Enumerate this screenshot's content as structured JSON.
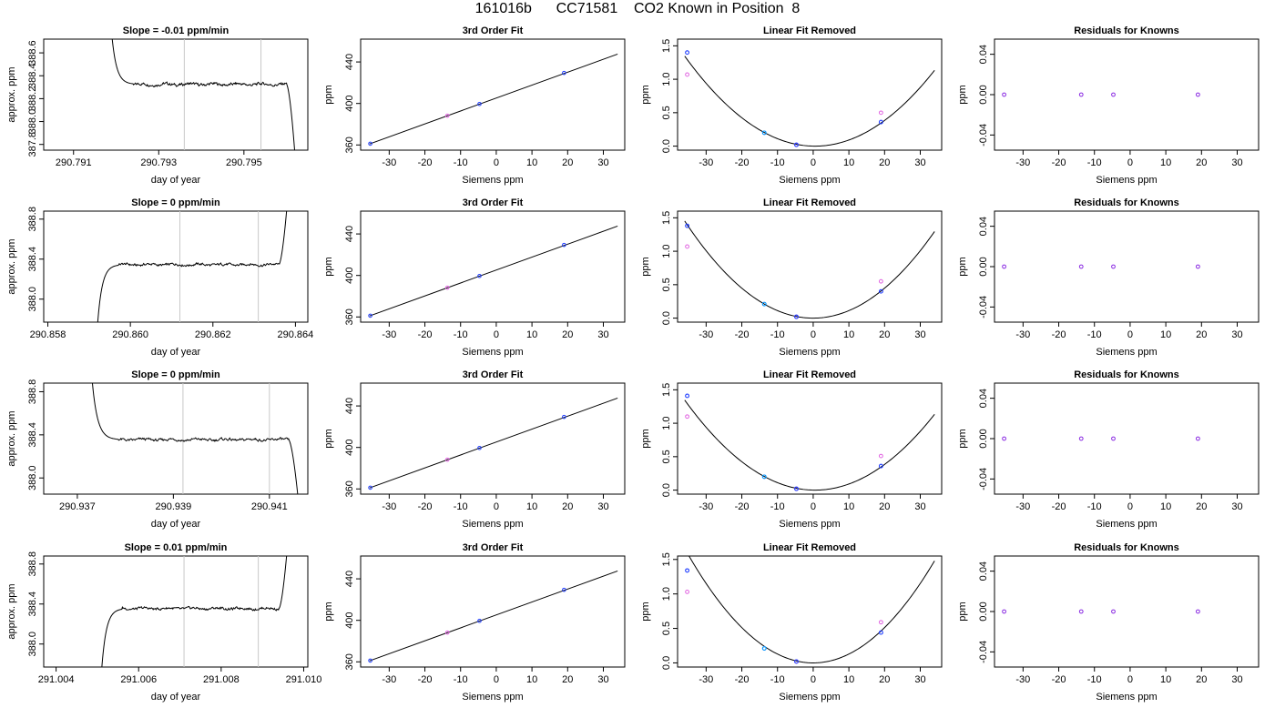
{
  "title": "161016b      CC71581    CO2 Known in Position  8",
  "colors": {
    "trace": "#000000",
    "marker_lines": "#c8c8c8",
    "fit_points": "#1e3cff",
    "known_points": "#e060e0",
    "highlight_point": "#00a0ff",
    "residual_points": "#8a2be2"
  },
  "columns": {
    "timeseries": {
      "ylabel": "approx. ppm",
      "xlabel": "day of year"
    },
    "fit": {
      "title": "3rd Order Fit",
      "ylabel": "ppm",
      "xlabel": "Siemens ppm"
    },
    "linear_removed": {
      "title": "Linear Fit Removed",
      "ylabel": "ppm",
      "xlabel": "Siemens ppm"
    },
    "residuals": {
      "title": "Residuals for Knowns",
      "ylabel": "ppm",
      "xlabel": "Siemens ppm"
    }
  },
  "chart_data": [
    {
      "row": 1,
      "timeseries": {
        "type": "line",
        "title": "Slope =  -0.01  ppm/min",
        "xlabel": "day of year",
        "ylabel": "approx. ppm",
        "xlim": [
          290.7903,
          290.7965
        ],
        "ylim": [
          387.75,
          388.72
        ],
        "xticks": [
          "290.791",
          "290.793",
          "290.795"
        ],
        "xtick_values": [
          290.791,
          290.793,
          290.795
        ],
        "yticks": [
          "387.8",
          "388.0",
          "388.2",
          "388.4",
          "388.6"
        ],
        "ytick_values": [
          387.8,
          388.0,
          388.2,
          388.4,
          388.6
        ],
        "window_lines": [
          290.7936,
          290.7954
        ],
        "trace": {
          "start": 290.7919,
          "end": 290.7962,
          "plateau_start": 290.7924,
          "plateau_end": 290.796,
          "plateau_level": 388.325,
          "before": 388.75,
          "after": 387.7,
          "direction": "down"
        }
      },
      "fit": {
        "type": "scatter",
        "title": "3rd Order Fit",
        "xlabel": "Siemens ppm",
        "ylabel": "ppm",
        "xlim": [
          -38,
          36
        ],
        "ylim": [
          355,
          462
        ],
        "xticks": [
          "-30",
          "-20",
          "-10",
          "0",
          "10",
          "20",
          "30"
        ],
        "xtick_values": [
          -30,
          -20,
          -10,
          0,
          10,
          20,
          30
        ],
        "yticks": [
          "360",
          "400",
          "440"
        ],
        "ytick_values": [
          360,
          400,
          440
        ],
        "points": [
          {
            "x": -35.3,
            "y": 361.2
          },
          {
            "x": -13.7,
            "y": 388.2
          },
          {
            "x": -4.7,
            "y": 399.5
          },
          {
            "x": 19.0,
            "y": 429.4
          }
        ],
        "curve": {
          "intercept": 405.2,
          "slope": 1.246,
          "xfrom": -35.5,
          "xto": 34.0
        }
      },
      "linear_removed": {
        "type": "scatter",
        "title": "Linear Fit Removed",
        "xlabel": "Siemens ppm",
        "ylabel": "ppm",
        "xlim": [
          -38,
          36
        ],
        "ylim": [
          -0.06,
          1.6
        ],
        "xticks": [
          "-30",
          "-20",
          "-10",
          "0",
          "10",
          "20",
          "30"
        ],
        "xtick_values": [
          -30,
          -20,
          -10,
          0,
          10,
          20,
          30
        ],
        "yticks": [
          "0.0",
          "0.5",
          "1.0",
          "1.5"
        ],
        "ytick_values": [
          0.0,
          0.5,
          1.0,
          1.5
        ],
        "fit_points": [
          {
            "x": -35.3,
            "y": 1.4
          },
          {
            "x": -13.7,
            "y": 0.2
          },
          {
            "x": -4.7,
            "y": 0.02
          },
          {
            "x": 19.0,
            "y": 0.36
          }
        ],
        "known_points": [
          {
            "x": -35.3,
            "y": 1.07
          },
          {
            "x": -13.7,
            "y": 0.2
          },
          {
            "x": -4.7,
            "y": 0.02
          },
          {
            "x": 19.0,
            "y": 0.5
          }
        ],
        "curve": {
          "vertex_x": 0.5,
          "vertex_y": 0.0,
          "coef": 0.00101,
          "xfrom": -36,
          "xto": 34.0
        }
      },
      "residuals": {
        "type": "scatter",
        "title": "Residuals for Knowns",
        "xlabel": "Siemens ppm",
        "ylabel": "ppm",
        "xlim": [
          -38,
          36
        ],
        "ylim": [
          -0.055,
          0.055
        ],
        "xticks": [
          "-30",
          "-20",
          "-10",
          "0",
          "10",
          "20",
          "30"
        ],
        "xtick_values": [
          -30,
          -20,
          -10,
          0,
          10,
          20,
          30
        ],
        "yticks": [
          "-0.04",
          "0.00",
          "0.04"
        ],
        "ytick_values": [
          -0.04,
          0.0,
          0.04
        ],
        "points": [
          {
            "x": -35.3,
            "y": 0.0
          },
          {
            "x": -13.7,
            "y": 0.0
          },
          {
            "x": -4.7,
            "y": 0.0
          },
          {
            "x": 19.0,
            "y": 0.0
          }
        ]
      }
    },
    {
      "row": 2,
      "timeseries": {
        "type": "line",
        "title": "Slope =  0  ppm/min",
        "xlabel": "day of year",
        "ylabel": "approx. ppm",
        "xlim": [
          290.8579,
          290.8643
        ],
        "ylim": [
          387.77,
          388.88
        ],
        "xticks": [
          "290.858",
          "290.860",
          "290.862",
          "290.864"
        ],
        "xtick_values": [
          290.858,
          290.86,
          290.862,
          290.864
        ],
        "yticks": [
          "388.0",
          "388.4",
          "388.8"
        ],
        "ytick_values": [
          388.0,
          388.4,
          388.8
        ],
        "window_lines": [
          290.8612,
          290.8631
        ],
        "trace": {
          "start": 290.8592,
          "end": 290.8638,
          "plateau_start": 290.8597,
          "plateau_end": 290.8636,
          "plateau_level": 388.345,
          "before": 387.72,
          "after": 388.95,
          "direction": "up"
        }
      },
      "fit": {
        "type": "scatter",
        "title": "3rd Order Fit",
        "xlabel": "Siemens ppm",
        "ylabel": "ppm",
        "xlim": [
          -38,
          36
        ],
        "ylim": [
          355,
          462
        ],
        "xticks": [
          "-30",
          "-20",
          "-10",
          "0",
          "10",
          "20",
          "30"
        ],
        "xtick_values": [
          -30,
          -20,
          -10,
          0,
          10,
          20,
          30
        ],
        "yticks": [
          "360",
          "400",
          "440"
        ],
        "ytick_values": [
          360,
          400,
          440
        ],
        "points": [
          {
            "x": -35.3,
            "y": 361.2
          },
          {
            "x": -13.7,
            "y": 388.2
          },
          {
            "x": -4.7,
            "y": 399.5
          },
          {
            "x": 19.0,
            "y": 429.4
          }
        ],
        "curve": {
          "intercept": 405.2,
          "slope": 1.246,
          "xfrom": -35.5,
          "xto": 34.0
        }
      },
      "linear_removed": {
        "type": "scatter",
        "title": "Linear Fit Removed",
        "xlabel": "Siemens ppm",
        "ylabel": "ppm",
        "xlim": [
          -38,
          36
        ],
        "ylim": [
          -0.06,
          1.6
        ],
        "xticks": [
          "-30",
          "-20",
          "-10",
          "0",
          "10",
          "20",
          "30"
        ],
        "xtick_values": [
          -30,
          -20,
          -10,
          0,
          10,
          20,
          30
        ],
        "yticks": [
          "0.0",
          "0.5",
          "1.0",
          "1.5"
        ],
        "ytick_values": [
          0.0,
          0.5,
          1.0,
          1.5
        ],
        "fit_points": [
          {
            "x": -35.3,
            "y": 1.38
          },
          {
            "x": -13.7,
            "y": 0.21
          },
          {
            "x": -4.7,
            "y": 0.02
          },
          {
            "x": 19.0,
            "y": 0.4
          }
        ],
        "known_points": [
          {
            "x": -35.3,
            "y": 1.07
          },
          {
            "x": -13.7,
            "y": 0.21
          },
          {
            "x": -4.7,
            "y": 0.02
          },
          {
            "x": 19.0,
            "y": 0.55
          }
        ],
        "curve": {
          "vertex_x": 0.0,
          "vertex_y": 0.0,
          "coef": 0.00112,
          "xfrom": -36,
          "xto": 34.0
        }
      },
      "residuals": {
        "type": "scatter",
        "title": "Residuals for Knowns",
        "xlabel": "Siemens ppm",
        "ylabel": "ppm",
        "xlim": [
          -38,
          36
        ],
        "ylim": [
          -0.055,
          0.055
        ],
        "xticks": [
          "-30",
          "-20",
          "-10",
          "0",
          "10",
          "20",
          "30"
        ],
        "xtick_values": [
          -30,
          -20,
          -10,
          0,
          10,
          20,
          30
        ],
        "yticks": [
          "-0.04",
          "0.00",
          "0.04"
        ],
        "ytick_values": [
          -0.04,
          0.0,
          0.04
        ],
        "points": [
          {
            "x": -35.3,
            "y": 0.0
          },
          {
            "x": -13.7,
            "y": 0.0
          },
          {
            "x": -4.7,
            "y": 0.0
          },
          {
            "x": 19.0,
            "y": 0.0
          }
        ]
      }
    },
    {
      "row": 3,
      "timeseries": {
        "type": "line",
        "title": "Slope =  0  ppm/min",
        "xlabel": "day of year",
        "ylabel": "approx. ppm",
        "xlim": [
          290.9363,
          290.9418
        ],
        "ylim": [
          387.85,
          388.88
        ],
        "xticks": [
          "290.937",
          "290.939",
          "290.941"
        ],
        "xtick_values": [
          290.937,
          290.939,
          290.941
        ],
        "yticks": [
          "388.0",
          "388.4",
          "388.8"
        ],
        "ytick_values": [
          388.0,
          388.4,
          388.8
        ],
        "window_lines": [
          290.9392,
          290.941
        ],
        "trace": {
          "start": 290.9373,
          "end": 290.9416,
          "plateau_start": 290.9378,
          "plateau_end": 290.9414,
          "plateau_level": 388.355,
          "before": 388.95,
          "after": 387.8,
          "direction": "down"
        }
      },
      "fit": {
        "type": "scatter",
        "title": "3rd Order Fit",
        "xlabel": "Siemens ppm",
        "ylabel": "ppm",
        "xlim": [
          -38,
          36
        ],
        "ylim": [
          355,
          462
        ],
        "xticks": [
          "-30",
          "-20",
          "-10",
          "0",
          "10",
          "20",
          "30"
        ],
        "xtick_values": [
          -30,
          -20,
          -10,
          0,
          10,
          20,
          30
        ],
        "yticks": [
          "360",
          "400",
          "440"
        ],
        "ytick_values": [
          360,
          400,
          440
        ],
        "points": [
          {
            "x": -35.3,
            "y": 361.2
          },
          {
            "x": -13.7,
            "y": 388.2
          },
          {
            "x": -4.7,
            "y": 399.5
          },
          {
            "x": 19.0,
            "y": 429.4
          }
        ],
        "curve": {
          "intercept": 405.2,
          "slope": 1.246,
          "xfrom": -35.5,
          "xto": 34.0
        }
      },
      "linear_removed": {
        "type": "scatter",
        "title": "Linear Fit Removed",
        "xlabel": "Siemens ppm",
        "ylabel": "ppm",
        "xlim": [
          -38,
          36
        ],
        "ylim": [
          -0.06,
          1.6
        ],
        "xticks": [
          "-30",
          "-20",
          "-10",
          "0",
          "10",
          "20",
          "30"
        ],
        "xtick_values": [
          -30,
          -20,
          -10,
          0,
          10,
          20,
          30
        ],
        "yticks": [
          "0.0",
          "0.5",
          "1.0",
          "1.5"
        ],
        "ytick_values": [
          0.0,
          0.5,
          1.0,
          1.5
        ],
        "fit_points": [
          {
            "x": -35.3,
            "y": 1.41
          },
          {
            "x": -13.7,
            "y": 0.2
          },
          {
            "x": -4.7,
            "y": 0.02
          },
          {
            "x": 19.0,
            "y": 0.36
          }
        ],
        "known_points": [
          {
            "x": -35.3,
            "y": 1.1
          },
          {
            "x": -13.7,
            "y": 0.2
          },
          {
            "x": -4.7,
            "y": 0.02
          },
          {
            "x": 19.0,
            "y": 0.51
          }
        ],
        "curve": {
          "vertex_x": 0.5,
          "vertex_y": 0.0,
          "coef": 0.00101,
          "xfrom": -36,
          "xto": 34.0
        }
      },
      "residuals": {
        "type": "scatter",
        "title": "Residuals for Knowns",
        "xlabel": "Siemens ppm",
        "ylabel": "ppm",
        "xlim": [
          -38,
          36
        ],
        "ylim": [
          -0.055,
          0.055
        ],
        "xticks": [
          "-30",
          "-20",
          "-10",
          "0",
          "10",
          "20",
          "30"
        ],
        "xtick_values": [
          -30,
          -20,
          -10,
          0,
          10,
          20,
          30
        ],
        "yticks": [
          "-0.04",
          "0.00",
          "0.04"
        ],
        "ytick_values": [
          -0.04,
          0.0,
          0.04
        ],
        "points": [
          {
            "x": -35.3,
            "y": 0.0
          },
          {
            "x": -13.7,
            "y": 0.0
          },
          {
            "x": -4.7,
            "y": 0.0
          },
          {
            "x": 19.0,
            "y": 0.0
          }
        ]
      }
    },
    {
      "row": 4,
      "timeseries": {
        "type": "line",
        "title": "Slope =  0.01  ppm/min",
        "xlabel": "day of year",
        "ylabel": "approx. ppm",
        "xlim": [
          291.0037,
          291.0101
        ],
        "ylim": [
          387.77,
          388.88
        ],
        "xticks": [
          "291.004",
          "291.006",
          "291.008",
          "291.010"
        ],
        "xtick_values": [
          291.004,
          291.006,
          291.008,
          291.01
        ],
        "yticks": [
          "388.0",
          "388.4",
          "388.8"
        ],
        "ytick_values": [
          388.0,
          388.4,
          388.8
        ],
        "window_lines": [
          291.0071,
          291.0089
        ],
        "trace": {
          "start": 291.0051,
          "end": 291.0096,
          "plateau_start": 291.0056,
          "plateau_end": 291.0094,
          "plateau_level": 388.355,
          "before": 387.72,
          "after": 388.95,
          "direction": "up"
        }
      },
      "fit": {
        "type": "scatter",
        "title": "3rd Order Fit",
        "xlabel": "Siemens ppm",
        "ylabel": "ppm",
        "xlim": [
          -38,
          36
        ],
        "ylim": [
          355,
          462
        ],
        "xticks": [
          "-30",
          "-20",
          "-10",
          "0",
          "10",
          "20",
          "30"
        ],
        "xtick_values": [
          -30,
          -20,
          -10,
          0,
          10,
          20,
          30
        ],
        "yticks": [
          "360",
          "400",
          "440"
        ],
        "ytick_values": [
          360,
          400,
          440
        ],
        "points": [
          {
            "x": -35.3,
            "y": 361.2
          },
          {
            "x": -13.7,
            "y": 388.2
          },
          {
            "x": -4.7,
            "y": 399.5
          },
          {
            "x": 19.0,
            "y": 429.4
          }
        ],
        "curve": {
          "intercept": 405.2,
          "slope": 1.246,
          "xfrom": -35.5,
          "xto": 34.0
        }
      },
      "linear_removed": {
        "type": "scatter",
        "title": "Linear Fit Removed",
        "xlabel": "Siemens ppm",
        "ylabel": "ppm",
        "xlim": [
          -38,
          36
        ],
        "ylim": [
          -0.06,
          1.55
        ],
        "xticks": [
          "-30",
          "-20",
          "-10",
          "0",
          "10",
          "20",
          "30"
        ],
        "xtick_values": [
          -30,
          -20,
          -10,
          0,
          10,
          20,
          30
        ],
        "yticks": [
          "0.0",
          "0.5",
          "1.0",
          "1.5"
        ],
        "ytick_values": [
          0.0,
          0.5,
          1.0,
          1.5
        ],
        "fit_points": [
          {
            "x": -35.3,
            "y": 1.34
          },
          {
            "x": -13.7,
            "y": 0.21
          },
          {
            "x": -4.7,
            "y": 0.02
          },
          {
            "x": 19.0,
            "y": 0.44
          }
        ],
        "known_points": [
          {
            "x": -35.3,
            "y": 1.03
          },
          {
            "x": -13.7,
            "y": 0.21
          },
          {
            "x": -4.7,
            "y": 0.02
          },
          {
            "x": 19.0,
            "y": 0.59
          }
        ],
        "curve": {
          "vertex_x": 0.0,
          "vertex_y": 0.0,
          "coef": 0.00128,
          "xfrom": -36,
          "xto": 34.0
        }
      },
      "residuals": {
        "type": "scatter",
        "title": "Residuals for Knowns",
        "xlabel": "Siemens ppm",
        "ylabel": "ppm",
        "xlim": [
          -38,
          36
        ],
        "ylim": [
          -0.055,
          0.055
        ],
        "xticks": [
          "-30",
          "-20",
          "-10",
          "0",
          "10",
          "20",
          "30"
        ],
        "xtick_values": [
          -30,
          -20,
          -10,
          0,
          10,
          20,
          30
        ],
        "yticks": [
          "-0.04",
          "0.00",
          "0.04"
        ],
        "ytick_values": [
          -0.04,
          0.0,
          0.04
        ],
        "points": [
          {
            "x": -35.3,
            "y": 0.0
          },
          {
            "x": -13.7,
            "y": 0.0
          },
          {
            "x": -4.7,
            "y": 0.0
          },
          {
            "x": 19.0,
            "y": 0.0
          }
        ]
      }
    }
  ]
}
